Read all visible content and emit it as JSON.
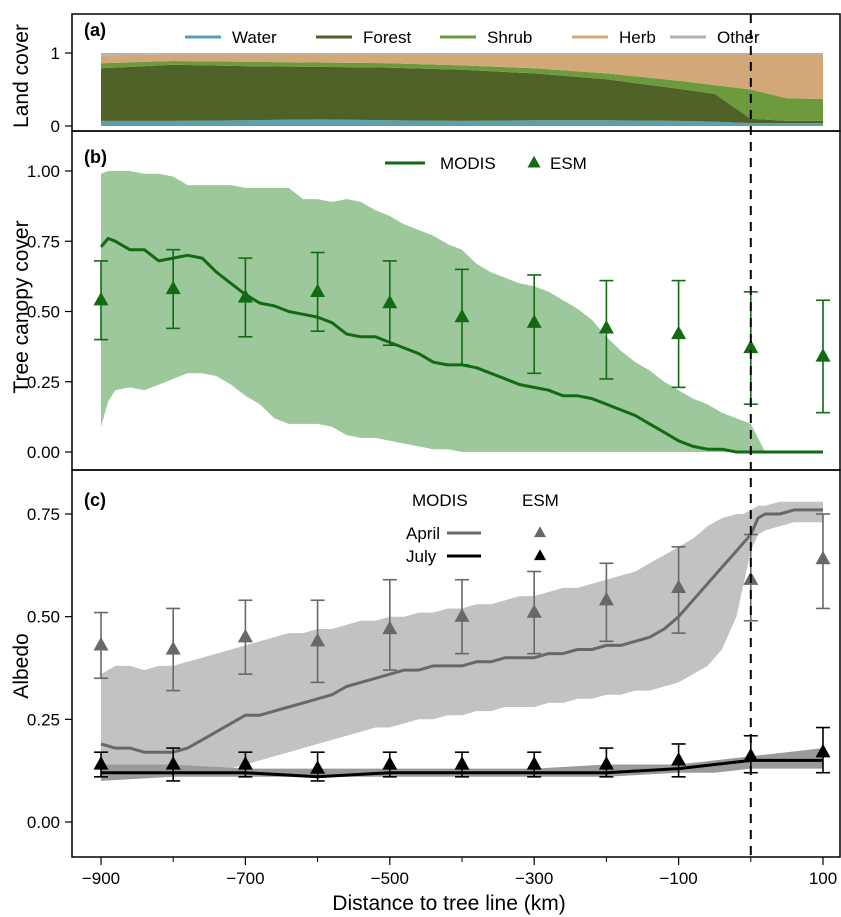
{
  "figure": {
    "xlabel": "Distance to tree line (km)",
    "x_ticks": [
      "−900",
      "−700",
      "−500",
      "−300",
      "−100",
      "100"
    ],
    "treeline_x": 0
  },
  "chart_data": [
    {
      "panel": "(a)",
      "type": "area",
      "ylabel": "Land cover",
      "xlim": [
        -900,
        100
      ],
      "ylim": [
        0,
        1
      ],
      "y_ticks": [
        "0",
        "1"
      ],
      "x": [
        -900,
        -800,
        -700,
        -600,
        -500,
        -400,
        -300,
        -200,
        -100,
        -50,
        0,
        50,
        100
      ],
      "series": [
        {
          "name": "Water",
          "color": "#5aa0ad",
          "values": [
            0.07,
            0.07,
            0.08,
            0.09,
            0.08,
            0.07,
            0.08,
            0.08,
            0.07,
            0.06,
            0.04,
            0.04,
            0.04
          ]
        },
        {
          "name": "Forest",
          "color": "#4e6126",
          "values": [
            0.72,
            0.77,
            0.74,
            0.72,
            0.72,
            0.7,
            0.64,
            0.56,
            0.44,
            0.38,
            0.06,
            0.03,
            0.03
          ]
        },
        {
          "name": "Shrub",
          "color": "#6e9a3e",
          "values": [
            0.07,
            0.05,
            0.06,
            0.06,
            0.06,
            0.06,
            0.07,
            0.08,
            0.11,
            0.12,
            0.4,
            0.31,
            0.3
          ]
        },
        {
          "name": "Herb",
          "color": "#d2a878",
          "values": [
            0.11,
            0.09,
            0.1,
            0.11,
            0.12,
            0.15,
            0.19,
            0.26,
            0.36,
            0.42,
            0.48,
            0.6,
            0.61
          ]
        },
        {
          "name": "Other",
          "color": "#b2b2b2",
          "values": [
            0.03,
            0.02,
            0.02,
            0.02,
            0.02,
            0.02,
            0.02,
            0.02,
            0.02,
            0.02,
            0.02,
            0.02,
            0.02
          ]
        }
      ]
    },
    {
      "panel": "(b)",
      "type": "line",
      "ylabel": "Tree canopy cover",
      "xlim": [
        -900,
        100
      ],
      "ylim": [
        0,
        1
      ],
      "y_ticks": [
        "0.00",
        "0.25",
        "0.50",
        "0.75",
        "1.00"
      ],
      "legend": [
        "MODIS",
        "ESM"
      ],
      "modis_line": {
        "name": "MODIS",
        "color": "#126b12",
        "x": [
          -900,
          -890,
          -880,
          -860,
          -840,
          -820,
          -800,
          -780,
          -760,
          -740,
          -720,
          -700,
          -680,
          -660,
          -640,
          -620,
          -600,
          -580,
          -560,
          -540,
          -520,
          -500,
          -480,
          -460,
          -440,
          -420,
          -400,
          -380,
          -360,
          -340,
          -320,
          -300,
          -280,
          -260,
          -240,
          -220,
          -200,
          -180,
          -160,
          -140,
          -120,
          -100,
          -80,
          -60,
          -40,
          -20,
          0,
          20,
          40,
          60,
          80,
          100
        ],
        "y": [
          0.73,
          0.76,
          0.75,
          0.72,
          0.72,
          0.68,
          0.69,
          0.7,
          0.69,
          0.64,
          0.6,
          0.56,
          0.53,
          0.52,
          0.5,
          0.49,
          0.48,
          0.46,
          0.42,
          0.41,
          0.41,
          0.39,
          0.37,
          0.35,
          0.32,
          0.31,
          0.31,
          0.3,
          0.28,
          0.26,
          0.24,
          0.23,
          0.22,
          0.2,
          0.2,
          0.19,
          0.17,
          0.15,
          0.13,
          0.1,
          0.07,
          0.04,
          0.02,
          0.01,
          0.01,
          0.0,
          0.0,
          0.0,
          0.0,
          0.0,
          0.0,
          0.0
        ]
      },
      "modis_band": {
        "upper": [
          0.99,
          1.0,
          1.0,
          1.0,
          0.99,
          0.99,
          0.98,
          0.95,
          0.95,
          0.95,
          0.95,
          0.94,
          0.94,
          0.94,
          0.94,
          0.9,
          0.9,
          0.89,
          0.9,
          0.89,
          0.86,
          0.84,
          0.81,
          0.79,
          0.77,
          0.74,
          0.72,
          0.67,
          0.64,
          0.62,
          0.6,
          0.59,
          0.57,
          0.54,
          0.51,
          0.47,
          0.41,
          0.36,
          0.32,
          0.29,
          0.25,
          0.22,
          0.19,
          0.17,
          0.14,
          0.12,
          0.1,
          0.0,
          0.0,
          0.0,
          0.0,
          0.0
        ],
        "lower": [
          0.09,
          0.18,
          0.22,
          0.23,
          0.22,
          0.24,
          0.26,
          0.28,
          0.28,
          0.27,
          0.24,
          0.2,
          0.17,
          0.12,
          0.1,
          0.1,
          0.1,
          0.09,
          0.06,
          0.05,
          0.05,
          0.04,
          0.03,
          0.02,
          0.01,
          0.01,
          0.0,
          0.0,
          0.0,
          0.0,
          0.0,
          0.0,
          0.0,
          0.0,
          0.0,
          0.0,
          0.0,
          0.0,
          0.0,
          0.0,
          0.0,
          0.0,
          0.0,
          0.0,
          0.0,
          0.0,
          0.0,
          0.0,
          0.0,
          0.0,
          0.0,
          0.0
        ],
        "color": "#9cc89c"
      },
      "esm_points": {
        "name": "ESM",
        "color": "#126b12",
        "x": [
          -900,
          -800,
          -700,
          -600,
          -500,
          -400,
          -300,
          -200,
          -100,
          0,
          100
        ],
        "y": [
          0.54,
          0.58,
          0.55,
          0.57,
          0.53,
          0.48,
          0.46,
          0.44,
          0.42,
          0.37,
          0.34
        ],
        "err_low": [
          0.4,
          0.44,
          0.41,
          0.43,
          0.38,
          0.31,
          0.28,
          0.26,
          0.23,
          0.17,
          0.14
        ],
        "err_high": [
          0.68,
          0.72,
          0.69,
          0.71,
          0.68,
          0.65,
          0.63,
          0.61,
          0.61,
          0.57,
          0.54
        ]
      }
    },
    {
      "panel": "(c)",
      "type": "line",
      "ylabel": "Albedo",
      "xlim": [
        -900,
        100
      ],
      "ylim": [
        0,
        0.75
      ],
      "y_ticks": [
        "0.00",
        "0.25",
        "0.50",
        "0.75"
      ],
      "legend_headers": [
        "MODIS",
        "ESM"
      ],
      "legend_rows": [
        "April",
        "July"
      ],
      "april_line": {
        "name": "April",
        "color": "#686868",
        "x": [
          -900,
          -880,
          -860,
          -840,
          -820,
          -800,
          -780,
          -760,
          -740,
          -720,
          -700,
          -680,
          -660,
          -640,
          -620,
          -600,
          -580,
          -560,
          -540,
          -520,
          -500,
          -480,
          -460,
          -440,
          -420,
          -400,
          -380,
          -360,
          -340,
          -320,
          -300,
          -280,
          -260,
          -240,
          -220,
          -200,
          -180,
          -160,
          -140,
          -120,
          -100,
          -80,
          -60,
          -40,
          -20,
          -10,
          0,
          10,
          20,
          40,
          60,
          80,
          100
        ],
        "y": [
          0.19,
          0.18,
          0.18,
          0.17,
          0.17,
          0.17,
          0.18,
          0.2,
          0.22,
          0.24,
          0.26,
          0.26,
          0.27,
          0.28,
          0.29,
          0.3,
          0.31,
          0.33,
          0.34,
          0.35,
          0.36,
          0.37,
          0.37,
          0.38,
          0.38,
          0.38,
          0.39,
          0.39,
          0.4,
          0.4,
          0.4,
          0.41,
          0.41,
          0.42,
          0.42,
          0.43,
          0.43,
          0.44,
          0.45,
          0.47,
          0.5,
          0.54,
          0.58,
          0.62,
          0.66,
          0.68,
          0.7,
          0.74,
          0.75,
          0.75,
          0.76,
          0.76,
          0.76
        ]
      },
      "april_band": {
        "upper": [
          0.36,
          0.38,
          0.38,
          0.37,
          0.38,
          0.38,
          0.39,
          0.4,
          0.41,
          0.42,
          0.43,
          0.44,
          0.45,
          0.46,
          0.46,
          0.47,
          0.47,
          0.48,
          0.49,
          0.49,
          0.5,
          0.5,
          0.51,
          0.51,
          0.52,
          0.52,
          0.53,
          0.53,
          0.54,
          0.55,
          0.55,
          0.56,
          0.57,
          0.57,
          0.58,
          0.59,
          0.6,
          0.61,
          0.63,
          0.65,
          0.67,
          0.69,
          0.72,
          0.74,
          0.75,
          0.75,
          0.76,
          0.77,
          0.77,
          0.78,
          0.78,
          0.78,
          0.78
        ],
        "lower": [
          0.12,
          0.12,
          0.12,
          0.12,
          0.12,
          0.12,
          0.12,
          0.12,
          0.12,
          0.13,
          0.14,
          0.15,
          0.16,
          0.17,
          0.18,
          0.19,
          0.2,
          0.21,
          0.22,
          0.23,
          0.23,
          0.24,
          0.25,
          0.25,
          0.26,
          0.26,
          0.27,
          0.27,
          0.28,
          0.28,
          0.28,
          0.29,
          0.29,
          0.3,
          0.3,
          0.31,
          0.31,
          0.32,
          0.32,
          0.33,
          0.34,
          0.36,
          0.38,
          0.42,
          0.5,
          0.58,
          0.66,
          0.7,
          0.71,
          0.72,
          0.73,
          0.73,
          0.73
        ],
        "color": "#c2c2c2"
      },
      "july_line": {
        "name": "July",
        "color": "#000000",
        "x": [
          -900,
          -800,
          -700,
          -600,
          -500,
          -400,
          -300,
          -200,
          -100,
          -50,
          0,
          50,
          100
        ],
        "y": [
          0.12,
          0.12,
          0.12,
          0.11,
          0.12,
          0.12,
          0.12,
          0.12,
          0.13,
          0.14,
          0.15,
          0.15,
          0.15
        ]
      },
      "july_band": {
        "upper": [
          0.14,
          0.14,
          0.13,
          0.13,
          0.13,
          0.13,
          0.13,
          0.14,
          0.14,
          0.15,
          0.16,
          0.17,
          0.18
        ],
        "lower": [
          0.1,
          0.11,
          0.11,
          0.11,
          0.11,
          0.11,
          0.11,
          0.11,
          0.12,
          0.12,
          0.13,
          0.13,
          0.13
        ],
        "color": "#9a9a9a"
      },
      "esm_april": {
        "name": "April",
        "color": "#686868",
        "x": [
          -900,
          -800,
          -700,
          -600,
          -500,
          -400,
          -300,
          -200,
          -100,
          0,
          100
        ],
        "y": [
          0.43,
          0.42,
          0.45,
          0.44,
          0.47,
          0.5,
          0.51,
          0.54,
          0.57,
          0.59,
          0.64
        ],
        "err_low": [
          0.35,
          0.32,
          0.36,
          0.34,
          0.37,
          0.41,
          0.41,
          0.44,
          0.46,
          0.49,
          0.52
        ],
        "err_high": [
          0.51,
          0.52,
          0.54,
          0.54,
          0.59,
          0.59,
          0.61,
          0.63,
          0.67,
          0.7,
          0.75
        ]
      },
      "esm_july": {
        "name": "July",
        "color": "#000000",
        "x": [
          -900,
          -800,
          -700,
          -600,
          -500,
          -400,
          -300,
          -200,
          -100,
          0,
          100
        ],
        "y": [
          0.14,
          0.14,
          0.14,
          0.13,
          0.14,
          0.14,
          0.14,
          0.14,
          0.15,
          0.16,
          0.17
        ],
        "err_low": [
          0.11,
          0.1,
          0.11,
          0.1,
          0.11,
          0.11,
          0.11,
          0.11,
          0.11,
          0.12,
          0.12
        ],
        "err_high": [
          0.17,
          0.18,
          0.17,
          0.17,
          0.17,
          0.17,
          0.17,
          0.18,
          0.19,
          0.21,
          0.23
        ]
      }
    }
  ]
}
